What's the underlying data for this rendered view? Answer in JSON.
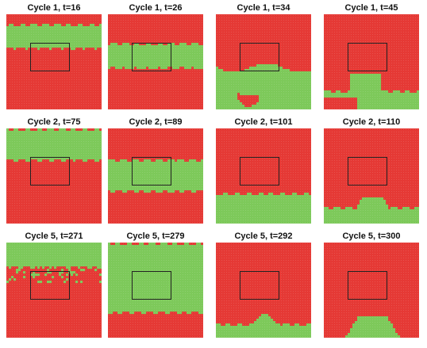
{
  "colors": {
    "red_phase": "#e53935",
    "green_phase": "#7dc95a",
    "mixed": "#d8d8a8",
    "obstacle_outline": "#222222",
    "dot": "#ffffff"
  },
  "panels": [
    {
      "title": "Cycle 1, t=16",
      "pattern": "band",
      "band": [
        0.1,
        0.34
      ]
    },
    {
      "title": "Cycle 1, t=26",
      "pattern": "band",
      "band": [
        0.3,
        0.56
      ]
    },
    {
      "title": "Cycle 1, t=34",
      "pattern": "bottomwave",
      "band": [
        0.55,
        1.0
      ]
    },
    {
      "title": "Cycle 1, t=45",
      "pattern": "bottomdrop",
      "band": [
        0.8,
        1.0
      ]
    },
    {
      "title": "Cycle 2, t=75",
      "pattern": "band",
      "band": [
        0.0,
        0.32
      ]
    },
    {
      "title": "Cycle 2, t=89",
      "pattern": "band",
      "band": [
        0.32,
        0.65
      ]
    },
    {
      "title": "Cycle 2, t=101",
      "pattern": "band",
      "band": [
        0.68,
        1.0
      ]
    },
    {
      "title": "Cycle 2, t=110",
      "pattern": "neck",
      "band": [
        0.82,
        1.0
      ]
    },
    {
      "title": "Cycle 5, t=271",
      "pattern": "speckle",
      "band": [
        0.0,
        0.22
      ]
    },
    {
      "title": "Cycle 5, t=279",
      "pattern": "band",
      "band": [
        0.0,
        0.72
      ]
    },
    {
      "title": "Cycle 5, t=292",
      "pattern": "peak",
      "band": [
        0.85,
        1.0
      ]
    },
    {
      "title": "Cycle 5, t=300",
      "pattern": "neck2",
      "band": [
        0.9,
        1.0
      ]
    }
  ]
}
